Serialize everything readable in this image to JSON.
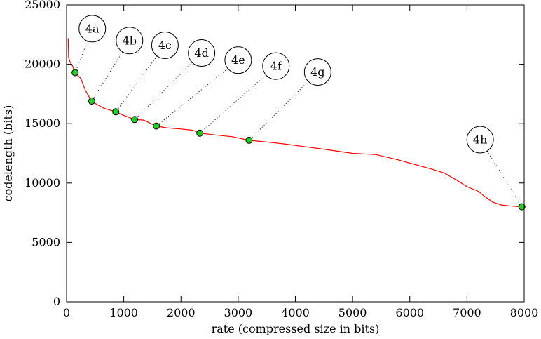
{
  "chart_data": {
    "type": "line",
    "xlabel": "rate (compressed size in bits)",
    "ylabel": "codelength (bits)",
    "xlim": [
      0,
      8000
    ],
    "ylim": [
      0,
      25000
    ],
    "xticks": [
      "0",
      "1000",
      "2000",
      "3000",
      "4000",
      "5000",
      "6000",
      "7000",
      "8000"
    ],
    "yticks": [
      "0",
      "5000",
      "10000",
      "15000",
      "20000",
      "25000"
    ],
    "grid": false,
    "line_color": "#ff0000",
    "marker_color": "#22cc22",
    "curve": [
      [
        30,
        22200
      ],
      [
        35,
        20600
      ],
      [
        60,
        20200
      ],
      [
        100,
        19900
      ],
      [
        150,
        19300
      ],
      [
        250,
        18800
      ],
      [
        330,
        17800
      ],
      [
        400,
        17200
      ],
      [
        440,
        16900
      ],
      [
        500,
        16700
      ],
      [
        650,
        16300
      ],
      [
        860,
        16000
      ],
      [
        1000,
        15700
      ],
      [
        1190,
        15350
      ],
      [
        1350,
        15300
      ],
      [
        1500,
        14950
      ],
      [
        1570,
        14800
      ],
      [
        1750,
        14650
      ],
      [
        2000,
        14550
      ],
      [
        2200,
        14450
      ],
      [
        2330,
        14200
      ],
      [
        2600,
        14050
      ],
      [
        2900,
        13900
      ],
      [
        3190,
        13600
      ],
      [
        3500,
        13450
      ],
      [
        3800,
        13300
      ],
      [
        4100,
        13100
      ],
      [
        4500,
        12850
      ],
      [
        5000,
        12500
      ],
      [
        5400,
        12400
      ],
      [
        5800,
        11950
      ],
      [
        6100,
        11550
      ],
      [
        6400,
        11150
      ],
      [
        6600,
        10850
      ],
      [
        6800,
        10300
      ],
      [
        7000,
        9700
      ],
      [
        7200,
        9300
      ],
      [
        7300,
        8900
      ],
      [
        7450,
        8400
      ],
      [
        7600,
        8150
      ],
      [
        7800,
        8050
      ],
      [
        7960,
        8000
      ]
    ],
    "points": [
      {
        "label": "4a",
        "x": 150,
        "y": 19300,
        "label_x": 450,
        "label_y": 23000
      },
      {
        "label": "4b",
        "x": 440,
        "y": 16900,
        "label_x": 1100,
        "label_y": 22000
      },
      {
        "label": "4c",
        "x": 860,
        "y": 16000,
        "label_x": 1720,
        "label_y": 21600
      },
      {
        "label": "4d",
        "x": 1190,
        "y": 15350,
        "label_x": 2360,
        "label_y": 20950
      },
      {
        "label": "4e",
        "x": 1570,
        "y": 14800,
        "label_x": 3000,
        "label_y": 20350
      },
      {
        "label": "4f",
        "x": 2330,
        "y": 14200,
        "label_x": 3660,
        "label_y": 19850
      },
      {
        "label": "4g",
        "x": 3190,
        "y": 13600,
        "label_x": 4390,
        "label_y": 19350
      },
      {
        "label": "4h",
        "x": 7960,
        "y": 8000,
        "label_x": 7230,
        "label_y": 13650
      }
    ]
  }
}
